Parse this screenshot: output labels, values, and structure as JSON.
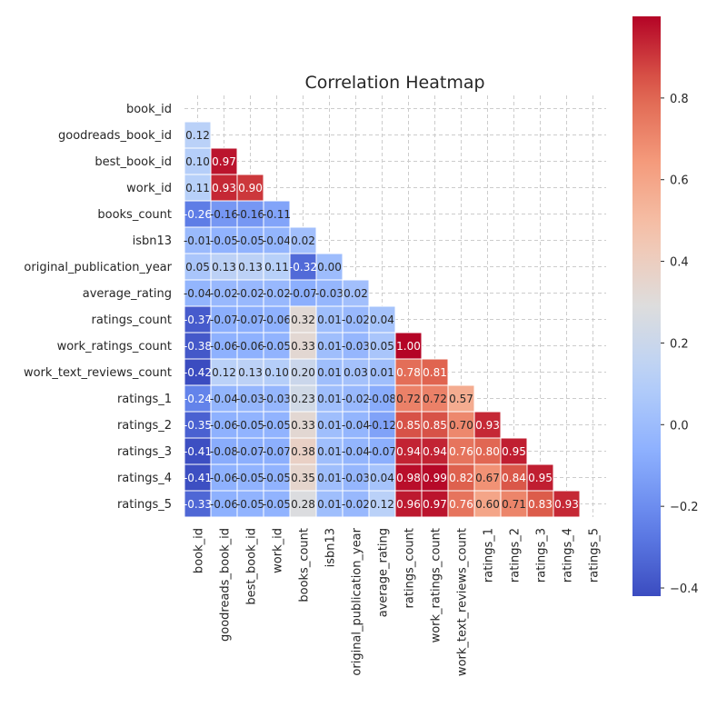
{
  "chart_data": {
    "type": "heatmap",
    "title": "Correlation Heatmap",
    "variables": [
      "book_id",
      "goodreads_book_id",
      "best_book_id",
      "work_id",
      "books_count",
      "isbn13",
      "original_publication_year",
      "average_rating",
      "ratings_count",
      "work_ratings_count",
      "work_text_reviews_count",
      "ratings_1",
      "ratings_2",
      "ratings_3",
      "ratings_4",
      "ratings_5"
    ],
    "lower_triangle": [
      [],
      [
        0.12
      ],
      [
        0.1,
        0.97
      ],
      [
        0.11,
        0.93,
        0.9
      ],
      [
        -0.26,
        -0.16,
        -0.16,
        -0.11
      ],
      [
        -0.01,
        -0.05,
        -0.05,
        -0.04,
        0.02
      ],
      [
        0.05,
        0.13,
        0.13,
        0.11,
        -0.32,
        -0.0
      ],
      [
        -0.04,
        -0.02,
        -0.02,
        -0.02,
        -0.07,
        -0.03,
        0.02
      ],
      [
        -0.37,
        -0.07,
        -0.07,
        -0.06,
        0.32,
        0.01,
        -0.02,
        0.04
      ],
      [
        -0.38,
        -0.06,
        -0.06,
        -0.05,
        0.33,
        0.01,
        -0.03,
        0.05,
        1.0
      ],
      [
        -0.42,
        0.12,
        0.13,
        0.1,
        0.2,
        0.01,
        0.03,
        0.01,
        0.78,
        0.81
      ],
      [
        -0.24,
        -0.04,
        -0.03,
        -0.03,
        0.23,
        0.01,
        -0.02,
        -0.08,
        0.72,
        0.72,
        0.57
      ],
      [
        -0.35,
        -0.06,
        -0.05,
        -0.05,
        0.33,
        0.01,
        -0.04,
        -0.12,
        0.85,
        0.85,
        0.7,
        0.93
      ],
      [
        -0.41,
        -0.08,
        -0.07,
        -0.07,
        0.38,
        0.01,
        -0.04,
        -0.07,
        0.94,
        0.94,
        0.76,
        0.8,
        0.95
      ],
      [
        -0.41,
        -0.06,
        -0.05,
        -0.05,
        0.35,
        0.01,
        -0.03,
        0.04,
        0.98,
        0.99,
        0.82,
        0.67,
        0.84,
        0.95
      ],
      [
        -0.33,
        -0.06,
        -0.05,
        -0.05,
        0.28,
        0.01,
        -0.02,
        0.12,
        0.96,
        0.97,
        0.76,
        0.6,
        0.71,
        0.83,
        0.93
      ]
    ],
    "value_format": "2 decimals",
    "colormap": "coolwarm",
    "colorbar": {
      "vmin": -0.42,
      "vmax": 1.0,
      "ticks": [
        -0.4,
        -0.2,
        0.0,
        0.2,
        0.4,
        0.6,
        0.8
      ],
      "tick_labels": [
        "−0.4",
        "−0.2",
        "0.0",
        "0.2",
        "0.4",
        "0.6",
        "0.8"
      ]
    },
    "grid": true,
    "mask": "upper triangle including diagonal"
  },
  "colors": {
    "low": "#3b4cc0",
    "mid": "#dddddd",
    "high": "#b40426",
    "grid": "#cccccc",
    "text_dark": "#262626"
  }
}
